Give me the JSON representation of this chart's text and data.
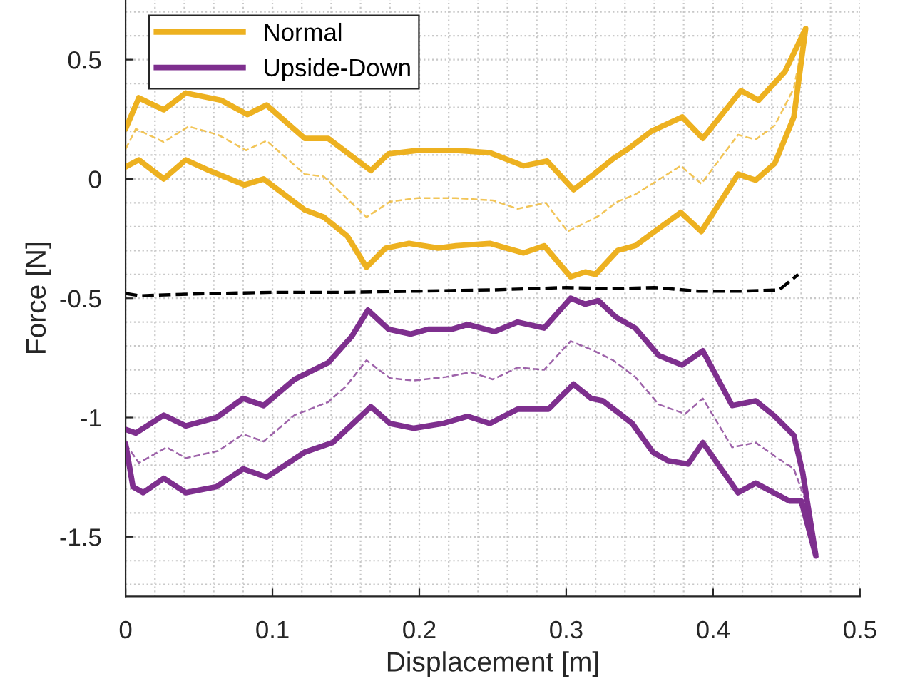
{
  "chart_data": {
    "type": "line",
    "xlabel": "Displacement [m]",
    "ylabel": "Force [N]",
    "xlim": [
      0,
      0.5
    ],
    "ylim": [
      -1.75,
      0.75
    ],
    "xticks": [
      0,
      0.1,
      0.2,
      0.3,
      0.4,
      0.5
    ],
    "yticks": [
      -1.5,
      -1,
      -0.5,
      0,
      0.5
    ],
    "grid": true,
    "legend": "top left",
    "marker": "none",
    "series": [
      {
        "name": "Normal",
        "color": "#edb120",
        "line_style": "solid",
        "x": [
          0,
          0.009,
          0.026,
          0.041,
          0.057,
          0.081,
          0.094,
          0.122,
          0.135,
          0.151,
          0.164,
          0.177,
          0.193,
          0.213,
          0.225,
          0.248,
          0.271,
          0.285,
          0.303,
          0.313,
          0.32,
          0.335,
          0.347,
          0.378,
          0.392,
          0.417,
          0.429,
          0.442,
          0.455,
          0.463,
          0.449,
          0.431,
          0.419,
          0.393,
          0.379,
          0.358,
          0.342,
          0.332,
          0.32,
          0.305,
          0.287,
          0.271,
          0.248,
          0.225,
          0.199,
          0.179,
          0.167,
          0.138,
          0.122,
          0.096,
          0.083,
          0.065,
          0.041,
          0.026,
          0.009,
          0
        ],
        "values": [
          0.05,
          0.08,
          0.0,
          0.08,
          0.035,
          -0.025,
          0.0,
          -0.13,
          -0.16,
          -0.24,
          -0.37,
          -0.29,
          -0.27,
          -0.29,
          -0.28,
          -0.27,
          -0.31,
          -0.28,
          -0.41,
          -0.39,
          -0.4,
          -0.3,
          -0.28,
          -0.14,
          -0.22,
          0.02,
          -0.005,
          0.065,
          0.26,
          0.63,
          0.45,
          0.33,
          0.37,
          0.17,
          0.26,
          0.2,
          0.125,
          0.085,
          0.025,
          -0.045,
          0.075,
          0.055,
          0.11,
          0.12,
          0.12,
          0.105,
          0.035,
          0.17,
          0.17,
          0.31,
          0.27,
          0.33,
          0.36,
          0.29,
          0.34,
          0.21
        ]
      },
      {
        "name": "Upside-Down",
        "color": "#7e2f8e",
        "line_style": "solid",
        "x": [
          0,
          0.007,
          0.026,
          0.041,
          0.062,
          0.08,
          0.094,
          0.115,
          0.138,
          0.154,
          0.165,
          0.179,
          0.194,
          0.206,
          0.222,
          0.233,
          0.251,
          0.267,
          0.285,
          0.303,
          0.313,
          0.322,
          0.334,
          0.347,
          0.363,
          0.379,
          0.393,
          0.413,
          0.429,
          0.442,
          0.455,
          0.461,
          0.47,
          0.46,
          0.452,
          0.429,
          0.417,
          0.393,
          0.383,
          0.369,
          0.359,
          0.345,
          0.325,
          0.317,
          0.305,
          0.288,
          0.267,
          0.248,
          0.233,
          0.216,
          0.196,
          0.18,
          0.167,
          0.141,
          0.122,
          0.096,
          0.08,
          0.062,
          0.041,
          0.026,
          0.012,
          0.005,
          0
        ],
        "values": [
          -1.05,
          -1.065,
          -0.99,
          -1.035,
          -1.0,
          -0.92,
          -0.95,
          -0.84,
          -0.77,
          -0.66,
          -0.55,
          -0.63,
          -0.65,
          -0.63,
          -0.63,
          -0.61,
          -0.64,
          -0.6,
          -0.625,
          -0.5,
          -0.525,
          -0.51,
          -0.58,
          -0.625,
          -0.74,
          -0.78,
          -0.72,
          -0.95,
          -0.93,
          -0.995,
          -1.075,
          -1.23,
          -1.58,
          -1.35,
          -1.35,
          -1.275,
          -1.315,
          -1.105,
          -1.195,
          -1.18,
          -1.145,
          -1.025,
          -0.93,
          -0.92,
          -0.86,
          -0.965,
          -0.965,
          -1.025,
          -0.995,
          -1.025,
          -1.045,
          -1.025,
          -0.955,
          -1.105,
          -1.145,
          -1.25,
          -1.215,
          -1.29,
          -1.315,
          -1.255,
          -1.315,
          -1.29,
          -1.11
        ]
      },
      {
        "color": "#edb120",
        "line_style": "dashed",
        "x": [
          0,
          0.007,
          0.026,
          0.043,
          0.063,
          0.082,
          0.096,
          0.122,
          0.135,
          0.164,
          0.18,
          0.199,
          0.225,
          0.25,
          0.267,
          0.286,
          0.301,
          0.311,
          0.322,
          0.335,
          0.347,
          0.378,
          0.392,
          0.417,
          0.429,
          0.442,
          0.455,
          0.463
        ],
        "values": [
          0.125,
          0.21,
          0.155,
          0.22,
          0.185,
          0.12,
          0.16,
          0.02,
          0.01,
          -0.16,
          -0.095,
          -0.08,
          -0.08,
          -0.09,
          -0.125,
          -0.1,
          -0.22,
          -0.19,
          -0.155,
          -0.095,
          -0.065,
          0.055,
          -0.02,
          0.185,
          0.165,
          0.225,
          0.38,
          0.63
        ]
      },
      {
        "color": "#7e2f8e",
        "line_style": "dashed",
        "x": [
          0,
          0.009,
          0.028,
          0.041,
          0.063,
          0.08,
          0.094,
          0.115,
          0.138,
          0.15,
          0.164,
          0.18,
          0.196,
          0.218,
          0.235,
          0.25,
          0.267,
          0.285,
          0.303,
          0.319,
          0.332,
          0.347,
          0.363,
          0.381,
          0.393,
          0.413,
          0.429,
          0.444,
          0.455,
          0.463,
          0.47
        ],
        "values": [
          -1.11,
          -1.19,
          -1.125,
          -1.17,
          -1.14,
          -1.07,
          -1.1,
          -0.99,
          -0.935,
          -0.87,
          -0.76,
          -0.835,
          -0.845,
          -0.83,
          -0.81,
          -0.84,
          -0.79,
          -0.8,
          -0.68,
          -0.72,
          -0.76,
          -0.83,
          -0.945,
          -0.985,
          -0.92,
          -1.125,
          -1.105,
          -1.17,
          -1.215,
          -1.35,
          -1.58
        ]
      },
      {
        "color": "#000000",
        "line_style": "dashed",
        "x": [
          0,
          0.01,
          0.03,
          0.06,
          0.1,
          0.15,
          0.2,
          0.25,
          0.3,
          0.33,
          0.36,
          0.39,
          0.42,
          0.445,
          0.45,
          0.458
        ],
        "values": [
          -0.48,
          -0.49,
          -0.485,
          -0.48,
          -0.475,
          -0.475,
          -0.47,
          -0.465,
          -0.455,
          -0.46,
          -0.455,
          -0.47,
          -0.47,
          -0.465,
          -0.44,
          -0.4
        ]
      }
    ]
  }
}
